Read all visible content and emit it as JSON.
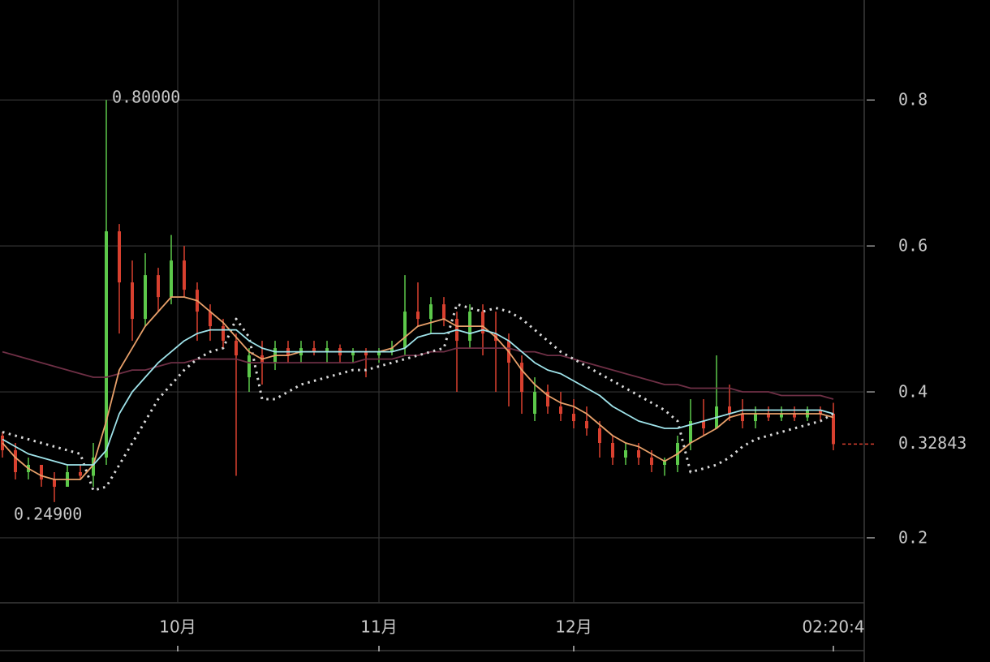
{
  "chart_data": {
    "type": "candlestick",
    "up_color": "#5cc84a",
    "down_color": "#d8402f",
    "grid": true,
    "xlim": [
      -0.1875,
      66.375
    ],
    "xticks": [
      {
        "value": 13.5,
        "label": "10月"
      },
      {
        "value": 29,
        "label": "11月"
      },
      {
        "value": 44,
        "label": "12月"
      },
      {
        "value": 64,
        "label": "02:20:4"
      }
    ],
    "ylim": [
      0.111,
      0.937
    ],
    "yticks": [
      0.2,
      0.4,
      0.6,
      0.8
    ],
    "annotations": [
      {
        "label": "0.80000",
        "value": 0.8
      },
      {
        "label": "0.24900",
        "value": 0.249
      }
    ],
    "last_price": {
      "label": "0.32843",
      "value": 0.32843,
      "color": "#d8402f"
    },
    "candles": [
      {
        "o": 0.34,
        "h": 0.345,
        "l": 0.31,
        "c": 0.32
      },
      {
        "o": 0.32,
        "h": 0.33,
        "l": 0.28,
        "c": 0.29
      },
      {
        "o": 0.29,
        "h": 0.31,
        "l": 0.28,
        "c": 0.3
      },
      {
        "o": 0.3,
        "h": 0.3,
        "l": 0.27,
        "c": 0.28
      },
      {
        "o": 0.28,
        "h": 0.29,
        "l": 0.249,
        "c": 0.27
      },
      {
        "o": 0.27,
        "h": 0.3,
        "l": 0.27,
        "c": 0.29
      },
      {
        "o": 0.29,
        "h": 0.3,
        "l": 0.28,
        "c": 0.285
      },
      {
        "o": 0.285,
        "h": 0.33,
        "l": 0.27,
        "c": 0.31
      },
      {
        "o": 0.31,
        "h": 0.8,
        "l": 0.3,
        "c": 0.62
      },
      {
        "o": 0.62,
        "h": 0.63,
        "l": 0.48,
        "c": 0.55
      },
      {
        "o": 0.55,
        "h": 0.58,
        "l": 0.47,
        "c": 0.5
      },
      {
        "o": 0.5,
        "h": 0.59,
        "l": 0.49,
        "c": 0.56
      },
      {
        "o": 0.56,
        "h": 0.57,
        "l": 0.51,
        "c": 0.53
      },
      {
        "o": 0.53,
        "h": 0.615,
        "l": 0.52,
        "c": 0.58
      },
      {
        "o": 0.58,
        "h": 0.6,
        "l": 0.53,
        "c": 0.54
      },
      {
        "o": 0.54,
        "h": 0.55,
        "l": 0.47,
        "c": 0.51
      },
      {
        "o": 0.51,
        "h": 0.52,
        "l": 0.47,
        "c": 0.49
      },
      {
        "o": 0.49,
        "h": 0.5,
        "l": 0.46,
        "c": 0.47
      },
      {
        "o": 0.47,
        "h": 0.48,
        "l": 0.285,
        "c": 0.45
      },
      {
        "o": 0.42,
        "h": 0.46,
        "l": 0.4,
        "c": 0.45
      },
      {
        "o": 0.45,
        "h": 0.47,
        "l": 0.41,
        "c": 0.44
      },
      {
        "o": 0.44,
        "h": 0.47,
        "l": 0.43,
        "c": 0.46
      },
      {
        "o": 0.46,
        "h": 0.47,
        "l": 0.44,
        "c": 0.45
      },
      {
        "o": 0.45,
        "h": 0.47,
        "l": 0.44,
        "c": 0.46
      },
      {
        "o": 0.46,
        "h": 0.47,
        "l": 0.45,
        "c": 0.455
      },
      {
        "o": 0.455,
        "h": 0.47,
        "l": 0.44,
        "c": 0.46
      },
      {
        "o": 0.46,
        "h": 0.465,
        "l": 0.44,
        "c": 0.45
      },
      {
        "o": 0.45,
        "h": 0.46,
        "l": 0.44,
        "c": 0.455
      },
      {
        "o": 0.455,
        "h": 0.46,
        "l": 0.42,
        "c": 0.45
      },
      {
        "o": 0.45,
        "h": 0.46,
        "l": 0.44,
        "c": 0.455
      },
      {
        "o": 0.455,
        "h": 0.47,
        "l": 0.45,
        "c": 0.46
      },
      {
        "o": 0.46,
        "h": 0.56,
        "l": 0.45,
        "c": 0.51
      },
      {
        "o": 0.51,
        "h": 0.55,
        "l": 0.49,
        "c": 0.5
      },
      {
        "o": 0.5,
        "h": 0.53,
        "l": 0.48,
        "c": 0.52
      },
      {
        "o": 0.52,
        "h": 0.53,
        "l": 0.49,
        "c": 0.5
      },
      {
        "o": 0.5,
        "h": 0.51,
        "l": 0.4,
        "c": 0.47
      },
      {
        "o": 0.47,
        "h": 0.52,
        "l": 0.46,
        "c": 0.51
      },
      {
        "o": 0.51,
        "h": 0.52,
        "l": 0.45,
        "c": 0.48
      },
      {
        "o": 0.48,
        "h": 0.51,
        "l": 0.4,
        "c": 0.47
      },
      {
        "o": 0.47,
        "h": 0.48,
        "l": 0.38,
        "c": 0.44
      },
      {
        "o": 0.44,
        "h": 0.45,
        "l": 0.37,
        "c": 0.4
      },
      {
        "o": 0.37,
        "h": 0.42,
        "l": 0.36,
        "c": 0.4
      },
      {
        "o": 0.4,
        "h": 0.41,
        "l": 0.37,
        "c": 0.38
      },
      {
        "o": 0.38,
        "h": 0.4,
        "l": 0.36,
        "c": 0.37
      },
      {
        "o": 0.37,
        "h": 0.39,
        "l": 0.35,
        "c": 0.36
      },
      {
        "o": 0.36,
        "h": 0.38,
        "l": 0.34,
        "c": 0.35
      },
      {
        "o": 0.35,
        "h": 0.36,
        "l": 0.31,
        "c": 0.33
      },
      {
        "o": 0.33,
        "h": 0.34,
        "l": 0.3,
        "c": 0.31
      },
      {
        "o": 0.31,
        "h": 0.33,
        "l": 0.3,
        "c": 0.32
      },
      {
        "o": 0.32,
        "h": 0.33,
        "l": 0.3,
        "c": 0.31
      },
      {
        "o": 0.31,
        "h": 0.32,
        "l": 0.29,
        "c": 0.3
      },
      {
        "o": 0.3,
        "h": 0.31,
        "l": 0.285,
        "c": 0.305
      },
      {
        "o": 0.3,
        "h": 0.34,
        "l": 0.29,
        "c": 0.33
      },
      {
        "o": 0.33,
        "h": 0.39,
        "l": 0.32,
        "c": 0.36
      },
      {
        "o": 0.36,
        "h": 0.39,
        "l": 0.34,
        "c": 0.35
      },
      {
        "o": 0.35,
        "h": 0.45,
        "l": 0.35,
        "c": 0.38
      },
      {
        "o": 0.38,
        "h": 0.41,
        "l": 0.36,
        "c": 0.37
      },
      {
        "o": 0.37,
        "h": 0.39,
        "l": 0.35,
        "c": 0.36
      },
      {
        "o": 0.36,
        "h": 0.38,
        "l": 0.35,
        "c": 0.37
      },
      {
        "o": 0.37,
        "h": 0.38,
        "l": 0.36,
        "c": 0.365
      },
      {
        "o": 0.365,
        "h": 0.38,
        "l": 0.36,
        "c": 0.37
      },
      {
        "o": 0.37,
        "h": 0.38,
        "l": 0.36,
        "c": 0.365
      },
      {
        "o": 0.365,
        "h": 0.38,
        "l": 0.36,
        "c": 0.375
      },
      {
        "o": 0.375,
        "h": 0.38,
        "l": 0.36,
        "c": 0.37
      },
      {
        "o": 0.37,
        "h": 0.385,
        "l": 0.32,
        "c": 0.32843
      }
    ],
    "series": [
      {
        "color": "#6e2f45",
        "style": "solid",
        "values": [
          0.455,
          0.45,
          0.445,
          0.44,
          0.435,
          0.43,
          0.425,
          0.42,
          0.42,
          0.425,
          0.43,
          0.43,
          0.435,
          0.44,
          0.44,
          0.445,
          0.445,
          0.445,
          0.445,
          0.44,
          0.44,
          0.44,
          0.44,
          0.44,
          0.44,
          0.44,
          0.44,
          0.44,
          0.445,
          0.445,
          0.445,
          0.45,
          0.45,
          0.455,
          0.455,
          0.46,
          0.46,
          0.46,
          0.46,
          0.46,
          0.455,
          0.455,
          0.45,
          0.45,
          0.445,
          0.44,
          0.435,
          0.43,
          0.425,
          0.42,
          0.415,
          0.41,
          0.41,
          0.405,
          0.405,
          0.405,
          0.405,
          0.4,
          0.4,
          0.4,
          0.395,
          0.395,
          0.395,
          0.395,
          0.39
        ]
      },
      {
        "color": "#d9d9d9",
        "style": "dotted",
        "values": [
          0.345,
          0.34,
          0.335,
          0.33,
          0.325,
          0.32,
          0.315,
          0.265,
          0.27,
          0.3,
          0.33,
          0.36,
          0.39,
          0.41,
          0.43,
          0.445,
          0.455,
          0.46,
          0.5,
          0.475,
          0.39,
          0.39,
          0.4,
          0.41,
          0.415,
          0.42,
          0.425,
          0.43,
          0.43,
          0.435,
          0.44,
          0.445,
          0.45,
          0.455,
          0.46,
          0.52,
          0.515,
          0.51,
          0.515,
          0.51,
          0.5,
          0.485,
          0.47,
          0.455,
          0.445,
          0.435,
          0.425,
          0.415,
          0.405,
          0.395,
          0.385,
          0.375,
          0.36,
          0.29,
          0.295,
          0.3,
          0.31,
          0.325,
          0.335,
          0.34,
          0.345,
          0.35,
          0.355,
          0.36,
          0.37
        ]
      },
      {
        "color": "#e8a06a",
        "style": "solid",
        "values": [
          0.33,
          0.31,
          0.295,
          0.285,
          0.28,
          0.28,
          0.28,
          0.3,
          0.36,
          0.43,
          0.46,
          0.49,
          0.51,
          0.53,
          0.53,
          0.525,
          0.51,
          0.495,
          0.475,
          0.455,
          0.445,
          0.45,
          0.45,
          0.455,
          0.455,
          0.455,
          0.455,
          0.455,
          0.455,
          0.455,
          0.46,
          0.475,
          0.49,
          0.495,
          0.5,
          0.49,
          0.49,
          0.49,
          0.475,
          0.455,
          0.43,
          0.41,
          0.395,
          0.385,
          0.38,
          0.37,
          0.355,
          0.34,
          0.33,
          0.325,
          0.315,
          0.305,
          0.315,
          0.33,
          0.34,
          0.35,
          0.365,
          0.37,
          0.37,
          0.37,
          0.37,
          0.37,
          0.37,
          0.37,
          0.365
        ]
      },
      {
        "color": "#9fe3ea",
        "style": "solid",
        "values": [
          0.335,
          0.325,
          0.315,
          0.31,
          0.305,
          0.3,
          0.3,
          0.3,
          0.32,
          0.37,
          0.4,
          0.42,
          0.44,
          0.455,
          0.47,
          0.48,
          0.485,
          0.485,
          0.485,
          0.47,
          0.46,
          0.455,
          0.455,
          0.455,
          0.455,
          0.455,
          0.455,
          0.455,
          0.455,
          0.455,
          0.455,
          0.46,
          0.475,
          0.48,
          0.48,
          0.485,
          0.48,
          0.485,
          0.48,
          0.47,
          0.455,
          0.44,
          0.43,
          0.425,
          0.415,
          0.405,
          0.395,
          0.38,
          0.37,
          0.36,
          0.355,
          0.35,
          0.35,
          0.355,
          0.36,
          0.365,
          0.37,
          0.375,
          0.375,
          0.375,
          0.375,
          0.375,
          0.375,
          0.375,
          0.37
        ]
      }
    ]
  }
}
